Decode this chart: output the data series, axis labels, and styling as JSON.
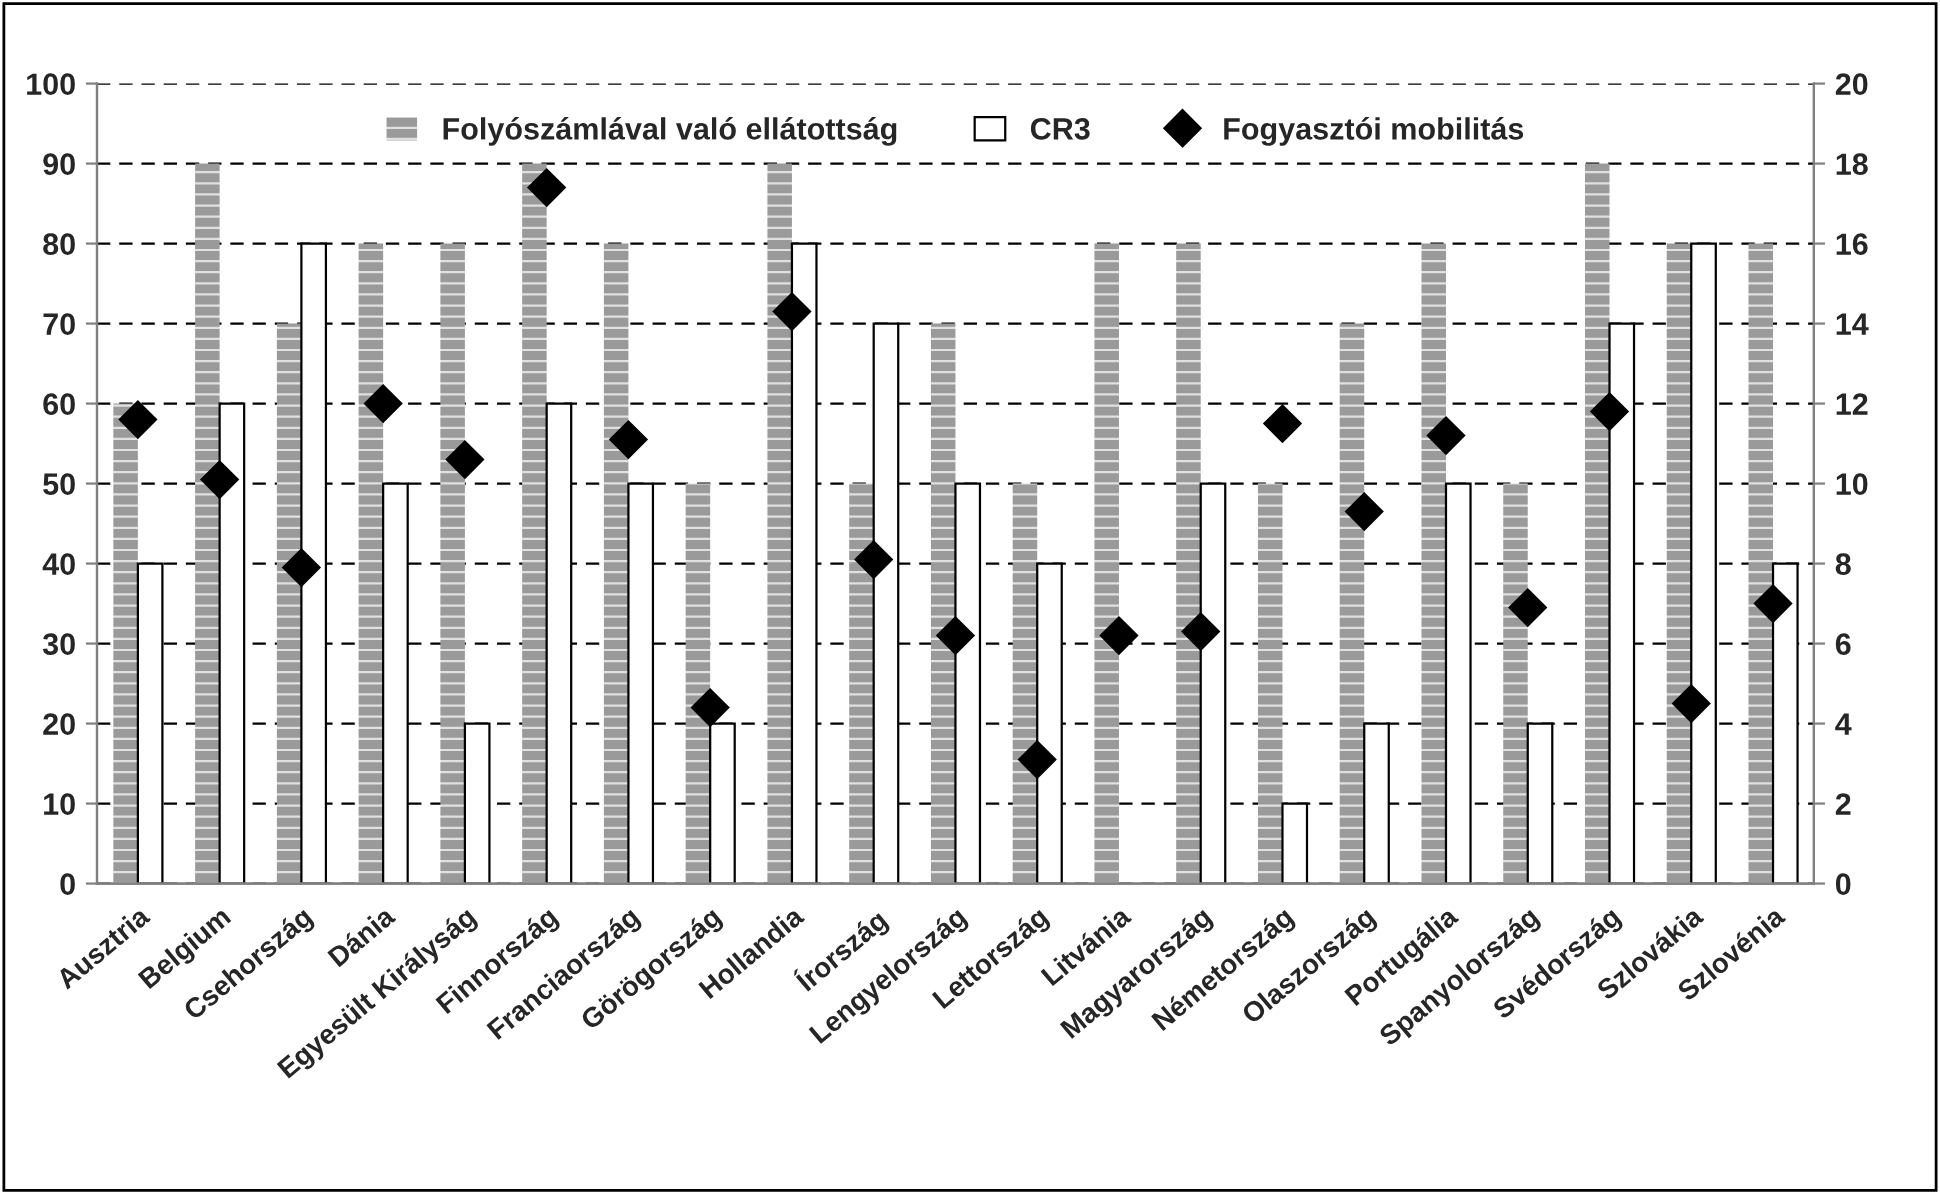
{
  "chart_data": {
    "type": "bar",
    "categories": [
      "Ausztria",
      "Belgium",
      "Csehország",
      "Dánia",
      "Egyesült Királyság",
      "Finnország",
      "Franciaország",
      "Görögország",
      "Hollandia",
      "Írország",
      "Lengyelország",
      "Lettország",
      "Litvánia",
      "Magyarország",
      "Németország",
      "Olaszország",
      "Portugália",
      "Spanyolország",
      "Svédország",
      "Szlovákia",
      "Szlovénia"
    ],
    "series": [
      {
        "name": "Folyószámlával való ellátottság",
        "color": "#9a9a9a",
        "values": [
          60,
          90,
          70,
          80,
          80,
          90,
          80,
          50,
          90,
          50,
          70,
          50,
          80,
          80,
          50,
          70,
          80,
          50,
          90,
          80,
          80
        ]
      },
      {
        "name": "CR3",
        "color": "#ffffff",
        "values": [
          40,
          60,
          80,
          50,
          20,
          60,
          50,
          20,
          80,
          70,
          50,
          40,
          null,
          50,
          10,
          20,
          50,
          20,
          70,
          80,
          40
        ]
      },
      {
        "name": "Fogyasztói mobilitás",
        "type": "scatter",
        "axis": "y2",
        "color": "#000000",
        "marker": "diamond",
        "values": [
          11.6,
          10.1,
          7.9,
          12.0,
          10.6,
          17.4,
          11.1,
          4.4,
          14.3,
          8.1,
          6.2,
          3.1,
          6.2,
          6.3,
          11.5,
          9.3,
          11.2,
          6.9,
          11.8,
          4.5,
          7.0
        ]
      }
    ],
    "ylim": [
      0,
      100
    ],
    "yticks": [
      0,
      10,
      20,
      30,
      40,
      50,
      60,
      70,
      80,
      90,
      100
    ],
    "y2lim": [
      0,
      20
    ],
    "y2ticks": [
      0,
      2,
      4,
      6,
      8,
      10,
      12,
      14,
      16,
      18,
      20
    ],
    "grid": "y",
    "legend": "top"
  }
}
